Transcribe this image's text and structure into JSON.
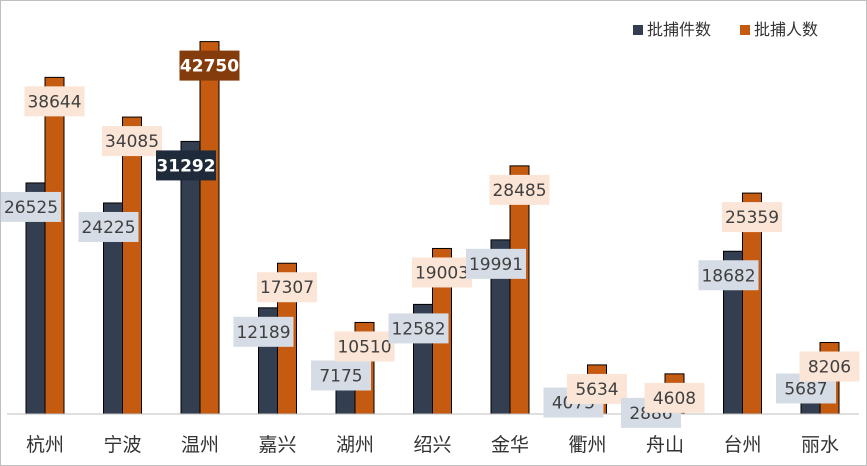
{
  "chart_data": {
    "type": "bar",
    "title": "",
    "xlabel": "",
    "ylabel": "",
    "ylim": [
      0,
      45000
    ],
    "grid": false,
    "legend_position": "top-right",
    "categories": [
      "杭州",
      "宁波",
      "温州",
      "嘉兴",
      "湖州",
      "绍兴",
      "金华",
      "衢州",
      "舟山",
      "台州",
      "丽水"
    ],
    "series": [
      {
        "name": "批捕件数",
        "color": "#333f50",
        "label_bg": "#d6dce5",
        "highlight_bg": "#1f2a3a",
        "values": [
          26525,
          24225,
          31292,
          12189,
          7175,
          12582,
          19991,
          4075,
          2886,
          18682,
          5687
        ]
      },
      {
        "name": "批捕人数",
        "color": "#c55a11",
        "label_bg": "#fbe5d6",
        "highlight_bg": "#843c0c",
        "values": [
          38644,
          34085,
          42750,
          17307,
          10510,
          19003,
          28485,
          5634,
          4608,
          25359,
          8206
        ]
      }
    ],
    "highlight_index": 2
  }
}
